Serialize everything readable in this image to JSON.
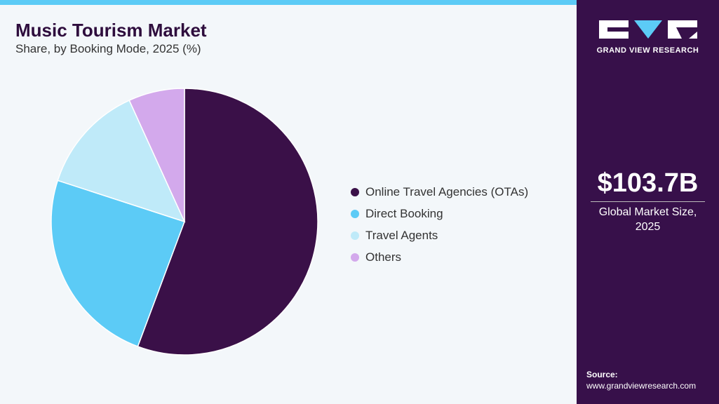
{
  "chart_data": {
    "type": "pie",
    "title": "Music Tourism Market",
    "subtitle": "Share, by Booking Mode, 2025 (%)",
    "categories": [
      "Online Travel Agencies (OTAs)",
      "Direct Booking",
      "Travel Agents",
      "Others"
    ],
    "values": [
      55.7,
      24.3,
      13.2,
      6.8
    ],
    "colors": [
      "#3a1048",
      "#5ccbf6",
      "#bfeaf9",
      "#d3a9ec"
    ]
  },
  "sidebar": {
    "brand": "GRAND VIEW RESEARCH",
    "market_size": "$103.7B",
    "market_size_label": "Global Market Size, 2025",
    "source_label": "Source:",
    "source_url": "www.grandviewresearch.com"
  }
}
